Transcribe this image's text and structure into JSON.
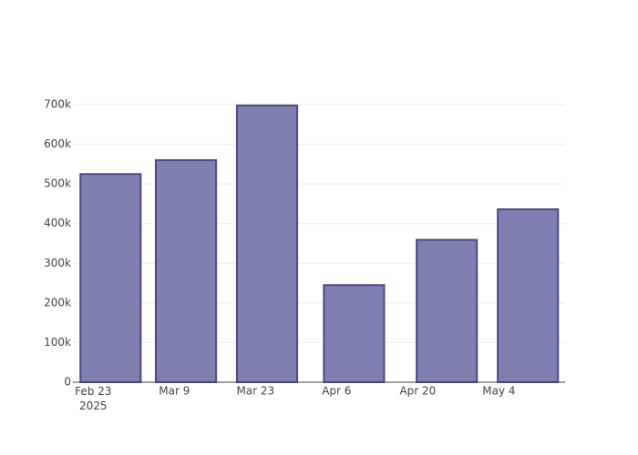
{
  "chart_data": {
    "type": "bar",
    "x": [
      "2025-02-26",
      "2025-03-11",
      "2025-03-25",
      "2025-04-09",
      "2025-04-25",
      "2025-05-09"
    ],
    "values": [
      525000,
      560000,
      698000,
      245000,
      359000,
      436000
    ],
    "color": "#7f7fb0",
    "line_color": "#4a4a8a",
    "xlim": [
      "2025-02-19T12:00",
      "2025-05-15T10:00"
    ],
    "xticks": [
      {
        "value": "2025-02-23",
        "label": "Feb 23\n2025"
      },
      {
        "value": "2025-03-09",
        "label": "Mar 9"
      },
      {
        "value": "2025-03-23",
        "label": "Mar 23"
      },
      {
        "value": "2025-04-06",
        "label": "Apr 6"
      },
      {
        "value": "2025-04-20",
        "label": "Apr 20"
      },
      {
        "value": "2025-05-04",
        "label": "May 4"
      }
    ],
    "ylim": [
      0,
      700000
    ],
    "yticks": [
      0,
      {
        "value": 100000,
        "label": "100k"
      },
      {
        "value": 200000,
        "label": "200k"
      },
      {
        "value": 300000,
        "label": "300k"
      },
      {
        "value": 400000,
        "label": "400k"
      },
      {
        "value": 500000,
        "label": "500k"
      },
      {
        "value": 600000,
        "label": "600k"
      },
      {
        "value": 700000,
        "label": "700k"
      }
    ],
    "grid": true
  }
}
